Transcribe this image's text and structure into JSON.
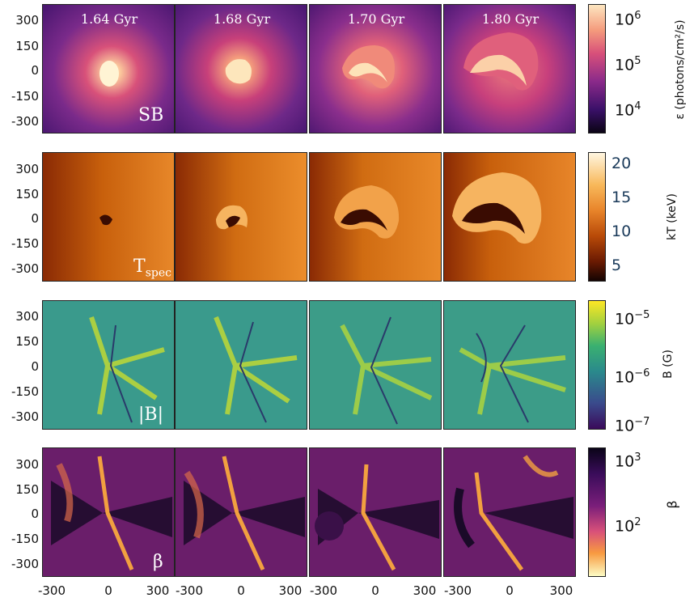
{
  "times": [
    "1.64 Gyr",
    "1.68 Gyr",
    "1.70 Gyr",
    "1.80 Gyr"
  ],
  "y_ticks": [
    "300",
    "150",
    "0",
    "-150",
    "-300"
  ],
  "x_ticks": [
    "-300",
    "0",
    "300"
  ],
  "rows": [
    {
      "panel_label": "SB",
      "colorbar": {
        "label": "ε (photons/cm²/s)",
        "ticks": [
          {
            "base": "10",
            "exp": "6"
          },
          {
            "base": "10",
            "exp": "5"
          },
          {
            "base": "10",
            "exp": "4"
          }
        ]
      },
      "colors": {
        "bg": "#4a1a7a",
        "mid": "#c23a70",
        "hot": "#fde2b0"
      }
    },
    {
      "panel_label": "T",
      "panel_label_sub": "spec",
      "colorbar": {
        "label": "kT (keV)",
        "ticks": [
          "20",
          "15",
          "10",
          "5"
        ]
      },
      "colors": {
        "bg": "#b84a08",
        "mid": "#e0801c",
        "hot": "#fbd084"
      }
    },
    {
      "panel_label": "|B|",
      "colorbar": {
        "label": "B (G)",
        "ticks": [
          {
            "base": "10",
            "exp": "−5"
          },
          {
            "base": "10",
            "exp": "−6"
          },
          {
            "base": "10",
            "exp": "−7"
          }
        ]
      },
      "colors": {
        "bg": "#2a8a8a",
        "mid": "#5ec262",
        "hot": "#d6e22a"
      }
    },
    {
      "panel_label": "β",
      "colorbar": {
        "label": "β",
        "ticks": [
          {
            "base": "10",
            "exp": "3"
          },
          {
            "base": "10",
            "exp": "2"
          }
        ]
      },
      "colors": {
        "bg": "#2a0c3c",
        "mid": "#8a2a6a",
        "hot": "#f49a38"
      }
    }
  ]
}
